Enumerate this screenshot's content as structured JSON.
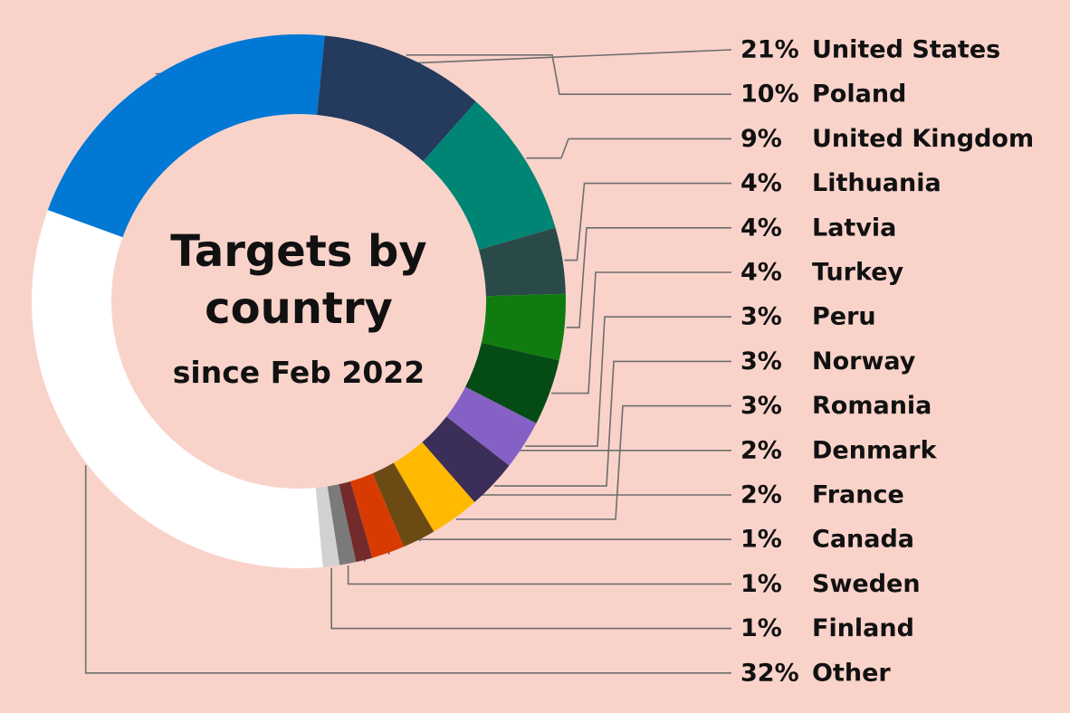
{
  "chart_data": {
    "type": "pie",
    "title": "Targets by country",
    "title_lines": [
      "Targets by",
      "country"
    ],
    "subtitle": "since Feb 2022",
    "slices": [
      {
        "label": "United States",
        "value": 21,
        "value_label": "21%",
        "color": "#0078d4"
      },
      {
        "label": "Poland",
        "value": 10,
        "value_label": "10%",
        "color": "#243a5e"
      },
      {
        "label": "United Kingdom",
        "value": 9,
        "value_label": "9%",
        "color": "#008575"
      },
      {
        "label": "Lithuania",
        "value": 4,
        "value_label": "4%",
        "color": "#2a4a4a"
      },
      {
        "label": "Latvia",
        "value": 4,
        "value_label": "4%",
        "color": "#107c10"
      },
      {
        "label": "Turkey",
        "value": 4,
        "value_label": "4%",
        "color": "#054b16"
      },
      {
        "label": "Peru",
        "value": 3,
        "value_label": "3%",
        "color": "#8661c5"
      },
      {
        "label": "Norway",
        "value": 3,
        "value_label": "3%",
        "color": "#3b2e58"
      },
      {
        "label": "Romania",
        "value": 3,
        "value_label": "3%",
        "color": "#ffb900"
      },
      {
        "label": "Denmark",
        "value": 2,
        "value_label": "2%",
        "color": "#6b4a14"
      },
      {
        "label": "France",
        "value": 2,
        "value_label": "2%",
        "color": "#d83b01"
      },
      {
        "label": "Canada",
        "value": 1,
        "value_label": "1%",
        "color": "#722a2a"
      },
      {
        "label": "Sweden",
        "value": 1,
        "value_label": "1%",
        "color": "#7a7a7a"
      },
      {
        "label": "Finland",
        "value": 1,
        "value_label": "1%",
        "color": "#d2d2d2"
      },
      {
        "label": "Other",
        "value": 32,
        "value_label": "32%",
        "color": "#ffffff"
      }
    ],
    "legend_position": "right",
    "leader_line_color": "#6e6e6e"
  }
}
